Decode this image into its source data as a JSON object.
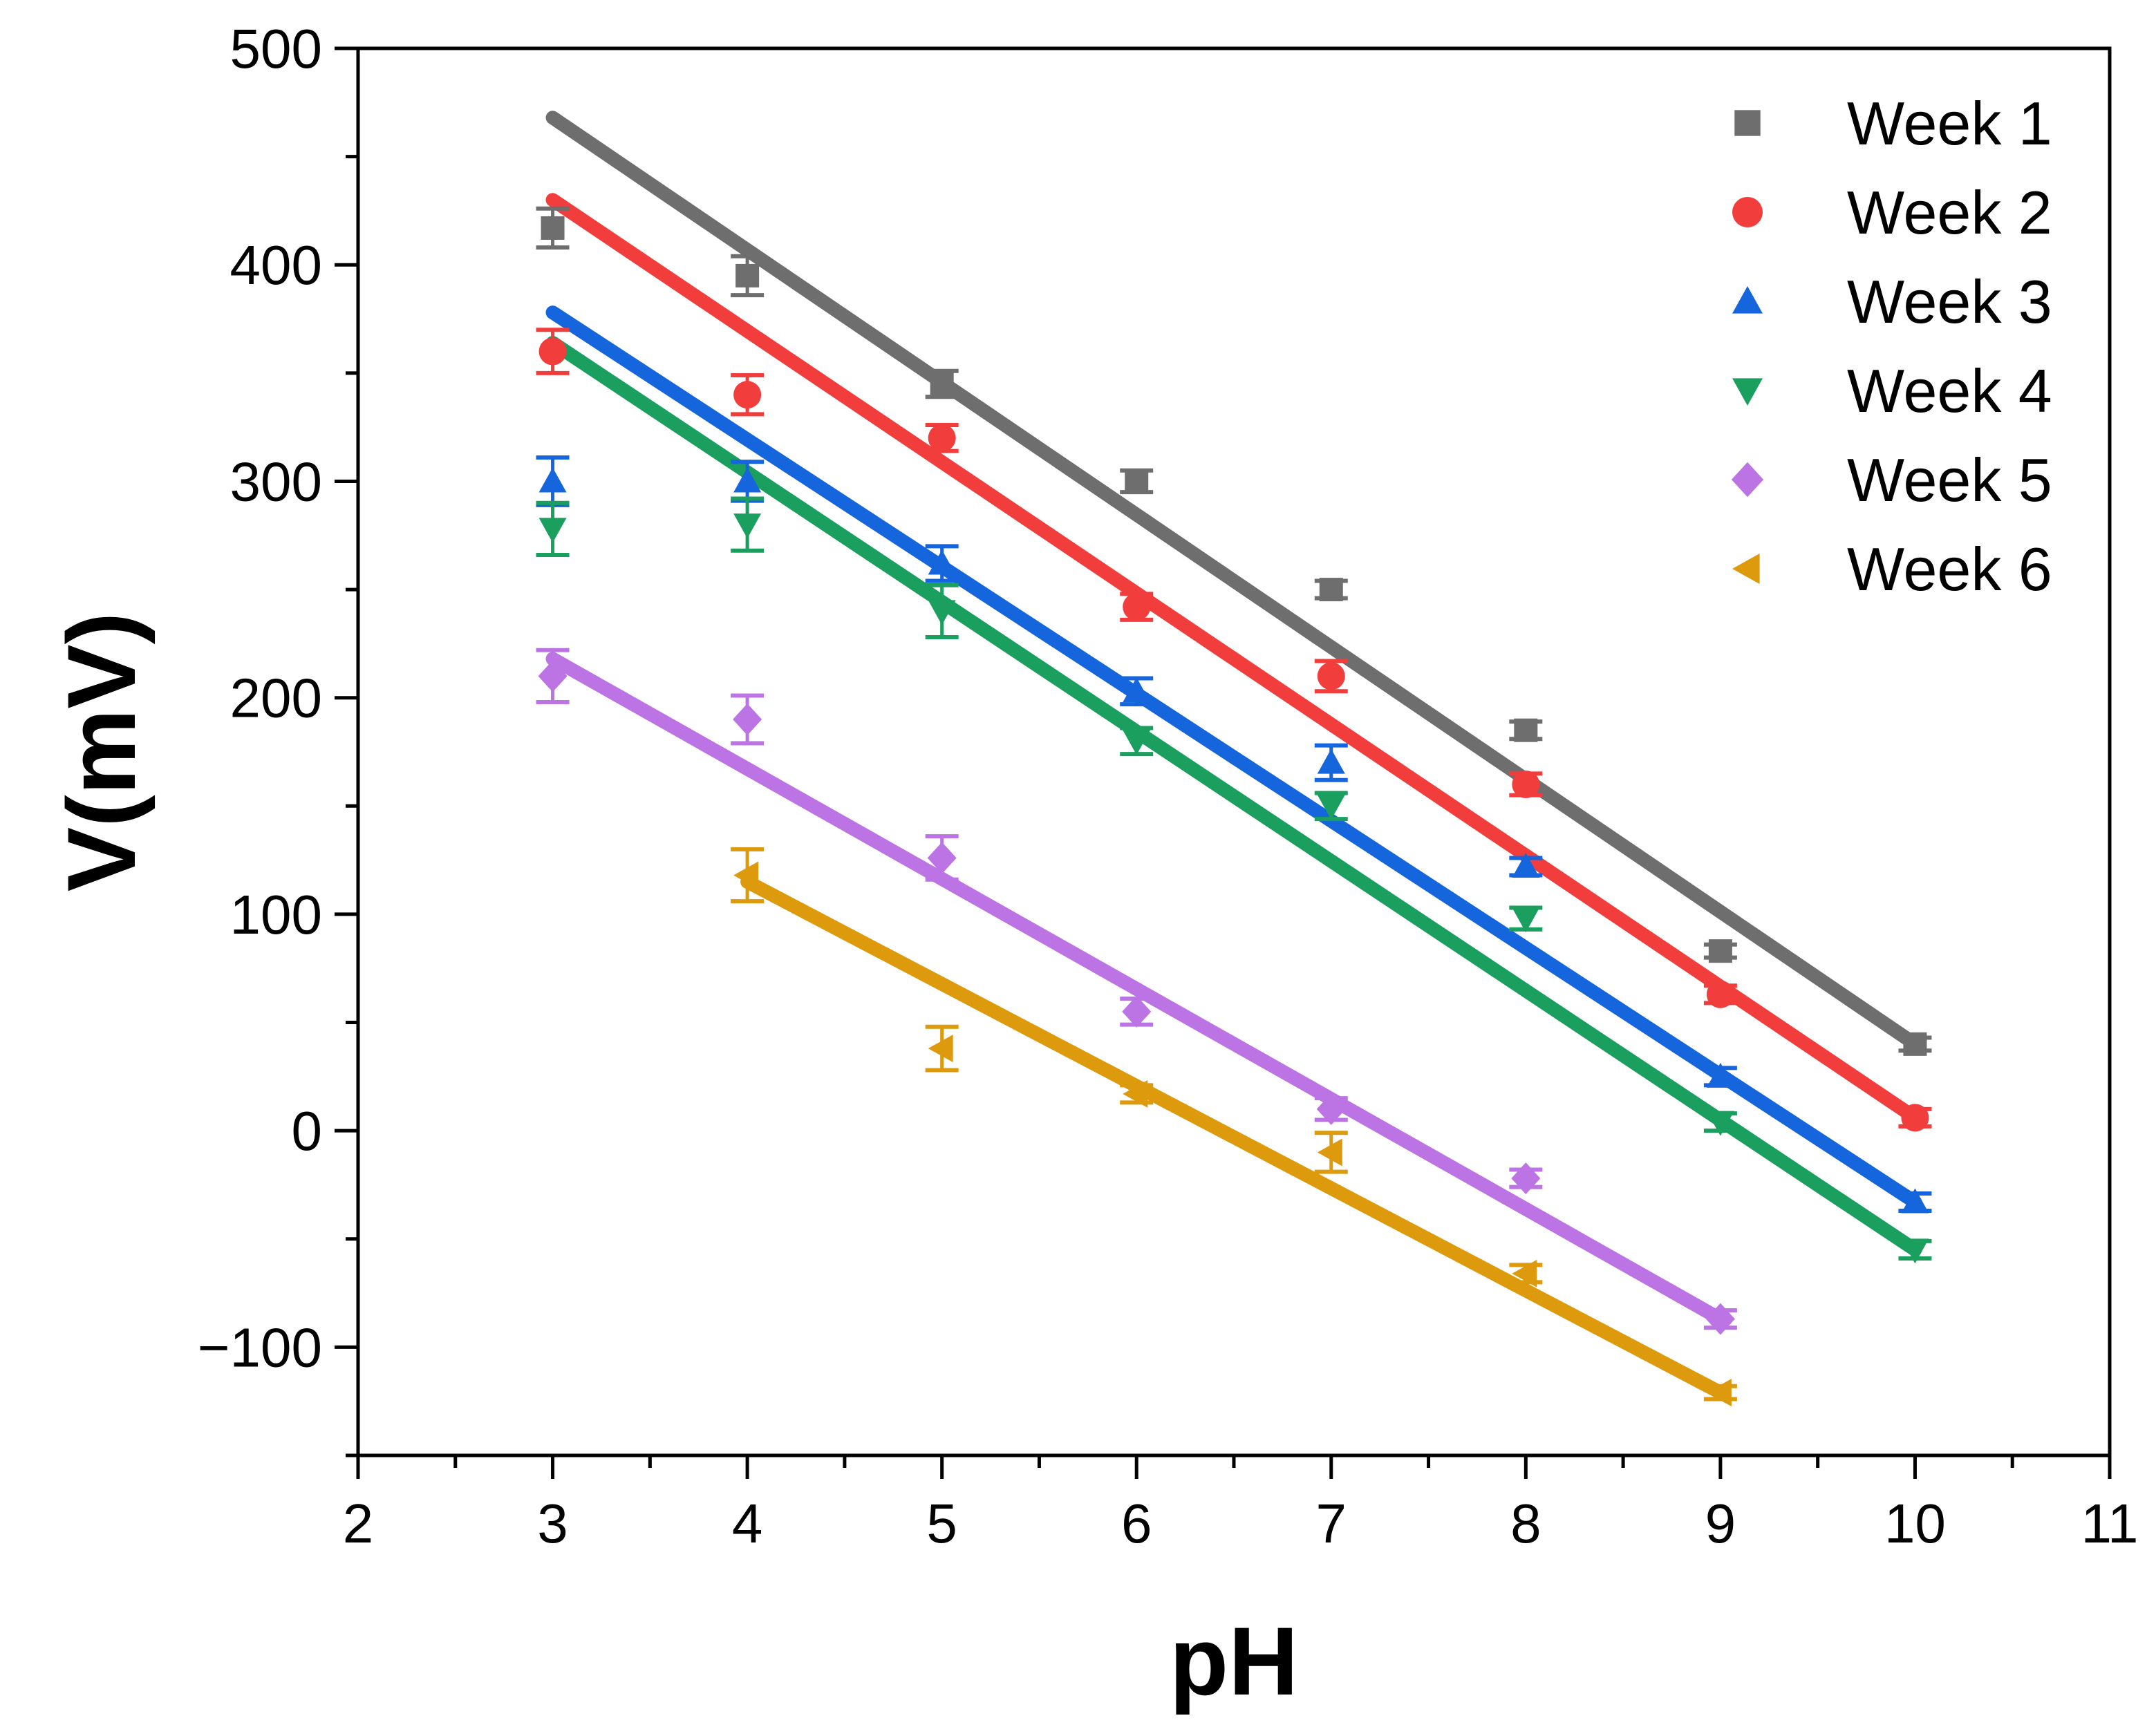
{
  "chart_data": {
    "type": "scatter",
    "xlabel": "pH",
    "ylabel": "V(mV)",
    "xlim": [
      2,
      11
    ],
    "ylim": [
      -150,
      500
    ],
    "xticks": [
      "2",
      "3",
      "4",
      "5",
      "6",
      "7",
      "8",
      "9",
      "10",
      "11"
    ],
    "yticks": [
      "−100",
      "0",
      "100",
      "200",
      "300",
      "400",
      "500"
    ],
    "legend_position": "top-right",
    "series": [
      {
        "name": "Week 1",
        "color": "#6e6e6e",
        "marker": "square",
        "x": [
          3,
          4,
          5,
          6,
          7,
          8,
          9,
          10
        ],
        "y": [
          417,
          395,
          345,
          300,
          250,
          185,
          83,
          40
        ],
        "err": [
          9,
          9,
          6,
          5,
          4,
          4,
          3,
          3
        ],
        "fit": {
          "x": [
            3,
            10
          ],
          "y": [
            468,
            40
          ]
        }
      },
      {
        "name": "Week 2",
        "color": "#f23d3d",
        "marker": "circle",
        "x": [
          3,
          4,
          5,
          6,
          7,
          8,
          9,
          10
        ],
        "y": [
          360,
          340,
          320,
          242,
          210,
          160,
          63,
          6
        ],
        "err": [
          10,
          9,
          6,
          6,
          7,
          5,
          4,
          4
        ],
        "fit": {
          "x": [
            3,
            10
          ],
          "y": [
            430,
            6
          ]
        }
      },
      {
        "name": "Week 3",
        "color": "#1565dc",
        "marker": "triangle-up",
        "x": [
          3,
          4,
          5,
          6,
          7,
          8,
          9,
          10
        ],
        "y": [
          300,
          300,
          262,
          203,
          170,
          122,
          25,
          -33
        ],
        "err": [
          11,
          9,
          8,
          6,
          8,
          4,
          4,
          4
        ],
        "fit": {
          "x": [
            3,
            10
          ],
          "y": [
            378,
            -33
          ]
        }
      },
      {
        "name": "Week 4",
        "color": "#1a9f5f",
        "marker": "triangle-down",
        "x": [
          3,
          4,
          5,
          6,
          7,
          8,
          9,
          10
        ],
        "y": [
          278,
          280,
          240,
          180,
          150,
          98,
          4,
          -55
        ],
        "err": [
          12,
          12,
          12,
          6,
          6,
          5,
          4,
          4
        ],
        "fit": {
          "x": [
            3,
            10
          ],
          "y": [
            364,
            -55
          ]
        }
      },
      {
        "name": "Week 5",
        "color": "#bc74e4",
        "marker": "diamond",
        "x": [
          3,
          4,
          5,
          6,
          7,
          8,
          9
        ],
        "y": [
          210,
          190,
          126,
          55,
          10,
          -22,
          -87
        ],
        "err": [
          12,
          11,
          10,
          6,
          5,
          4,
          4
        ],
        "fit": {
          "x": [
            3,
            9
          ],
          "y": [
            218,
            -87
          ]
        }
      },
      {
        "name": "Week 6",
        "color": "#dc9a0c",
        "marker": "triangle-left",
        "x": [
          4,
          5,
          6,
          7,
          8,
          9
        ],
        "y": [
          118,
          38,
          17,
          -10,
          -66,
          -121
        ],
        "err": [
          12,
          10,
          4,
          9,
          4,
          3
        ],
        "fit": {
          "x": [
            4,
            9
          ],
          "y": [
            115,
            -121
          ]
        }
      }
    ]
  }
}
